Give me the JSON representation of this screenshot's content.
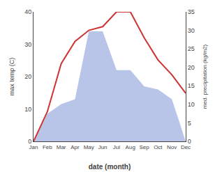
{
  "chart_data": {
    "type": "line",
    "categories": [
      "Jan",
      "Feb",
      "Mar",
      "Apr",
      "May",
      "Jun",
      "Jul",
      "Aug",
      "Sep",
      "Oct",
      "Nov",
      "Dec"
    ],
    "xlabel": "date (month)",
    "ylabel": "max temp (C)",
    "y2label": "med. precipitation (kg/m2)",
    "series": [
      {
        "type": "area",
        "color": "#b8c4e8",
        "values": [
          0,
          8.5,
          11.5,
          13.0,
          34.0,
          34.0,
          22.0,
          22.0,
          17.0,
          16.0,
          13.0,
          0
        ]
      },
      {
        "type": "line",
        "color": "#cc3333",
        "axis": "y2",
        "values": [
          0,
          8.0,
          21.0,
          27.0,
          30.0,
          31.0,
          35.0,
          35.0,
          28.0,
          22.0,
          18.0,
          13.0
        ]
      }
    ],
    "ylim": [
      0,
      40
    ],
    "yticks": [
      0,
      10,
      20,
      30,
      40
    ],
    "y2lim": [
      0,
      35
    ],
    "y2ticks": [
      0,
      5,
      10,
      15,
      20,
      25,
      30,
      35
    ],
    "grid": false
  }
}
